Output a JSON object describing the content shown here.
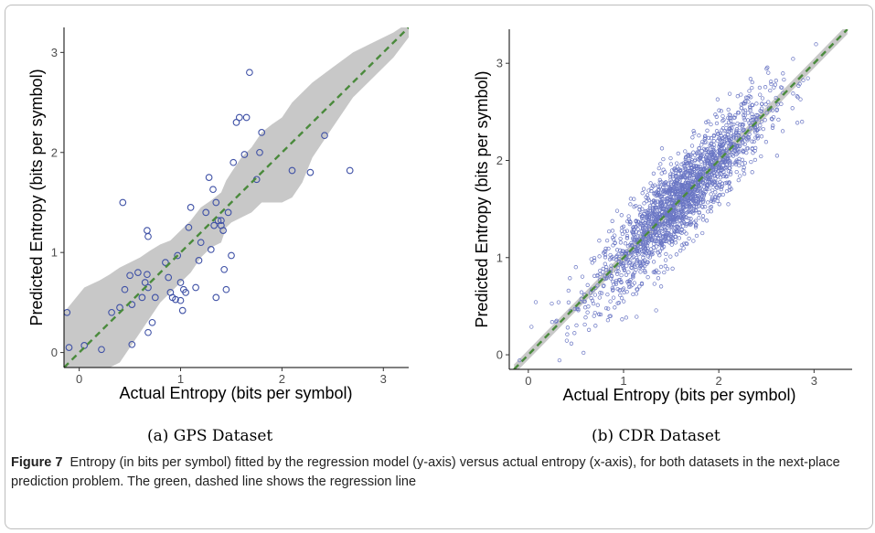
{
  "chart_data": [
    {
      "type": "scatter",
      "xlabel": "Actual Entropy (bits per symbol)",
      "ylabel": "Predicted Entropy (bits per symbol)",
      "subcaption": "(a)  GPS Dataset",
      "xlim": [
        -0.15,
        3.25
      ],
      "ylim": [
        -0.15,
        3.25
      ],
      "xticks": [
        "0",
        "1",
        "2",
        "3"
      ],
      "yticks": [
        "0",
        "1",
        "2",
        "3"
      ],
      "grid": false,
      "point_color": "#3f51a6",
      "line_color": "#4a8a3c",
      "band_color": "#c8c8c8",
      "regression_line": {
        "x": [
          -0.15,
          3.25
        ],
        "y": [
          -0.15,
          3.25
        ],
        "style": "dashed"
      },
      "confidence_band": {
        "x": [
          -0.15,
          0.05,
          0.2,
          0.3,
          0.4,
          0.5,
          0.6,
          0.7,
          0.8,
          0.9,
          1.0,
          1.1,
          1.2,
          1.3,
          1.4,
          1.45,
          1.5,
          1.6,
          1.7,
          1.8,
          1.9,
          2.0,
          2.1,
          2.2,
          2.3,
          2.5,
          2.7,
          2.9,
          3.1,
          3.25
        ],
        "upper": [
          0.4,
          0.65,
          0.72,
          0.78,
          0.85,
          0.9,
          0.95,
          1.02,
          1.08,
          1.12,
          1.22,
          1.32,
          1.45,
          1.52,
          1.6,
          1.72,
          1.8,
          1.95,
          2.05,
          2.2,
          2.28,
          2.35,
          2.5,
          2.6,
          2.7,
          2.85,
          3.0,
          3.1,
          3.2,
          3.3
        ],
        "lower": [
          -0.15,
          -0.15,
          -0.15,
          -0.15,
          -0.1,
          0.05,
          0.2,
          0.35,
          0.5,
          0.6,
          0.7,
          0.8,
          0.95,
          1.05,
          1.1,
          1.25,
          1.3,
          1.35,
          1.4,
          1.5,
          1.5,
          1.5,
          1.55,
          1.7,
          1.95,
          2.25,
          2.55,
          2.75,
          2.95,
          3.15
        ]
      },
      "points": [
        [
          -0.12,
          0.4
        ],
        [
          -0.1,
          0.05
        ],
        [
          0.05,
          0.07
        ],
        [
          0.22,
          0.03
        ],
        [
          0.32,
          0.4
        ],
        [
          0.4,
          0.45
        ],
        [
          0.45,
          0.63
        ],
        [
          0.52,
          0.48
        ],
        [
          0.5,
          0.77
        ],
        [
          0.52,
          0.08
        ],
        [
          0.58,
          0.8
        ],
        [
          0.62,
          0.55
        ],
        [
          0.65,
          0.7
        ],
        [
          0.67,
          0.78
        ],
        [
          0.68,
          0.65
        ],
        [
          0.68,
          0.2
        ],
        [
          0.72,
          0.3
        ],
        [
          0.75,
          0.55
        ],
        [
          0.43,
          1.5
        ],
        [
          0.67,
          1.22
        ],
        [
          0.68,
          1.16
        ],
        [
          0.85,
          0.9
        ],
        [
          0.88,
          0.75
        ],
        [
          0.9,
          0.6
        ],
        [
          0.92,
          0.55
        ],
        [
          0.95,
          0.53
        ],
        [
          0.97,
          0.97
        ],
        [
          1.0,
          0.7
        ],
        [
          1.0,
          0.52
        ],
        [
          1.02,
          0.42
        ],
        [
          1.03,
          0.63
        ],
        [
          1.05,
          0.6
        ],
        [
          1.08,
          1.25
        ],
        [
          1.1,
          1.45
        ],
        [
          1.15,
          0.65
        ],
        [
          1.18,
          0.92
        ],
        [
          1.2,
          1.1
        ],
        [
          1.25,
          1.4
        ],
        [
          1.28,
          1.75
        ],
        [
          1.3,
          1.03
        ],
        [
          1.32,
          1.63
        ],
        [
          1.33,
          1.27
        ],
        [
          1.35,
          0.55
        ],
        [
          1.35,
          1.5
        ],
        [
          1.37,
          1.32
        ],
        [
          1.4,
          1.32
        ],
        [
          1.4,
          1.27
        ],
        [
          1.42,
          1.22
        ],
        [
          1.43,
          0.83
        ],
        [
          1.45,
          0.63
        ],
        [
          1.47,
          1.4
        ],
        [
          1.5,
          0.97
        ],
        [
          1.52,
          1.9
        ],
        [
          1.55,
          2.3
        ],
        [
          1.58,
          2.35
        ],
        [
          1.63,
          1.98
        ],
        [
          1.65,
          2.35
        ],
        [
          1.68,
          2.8
        ],
        [
          1.75,
          1.73
        ],
        [
          1.78,
          2.0
        ],
        [
          1.8,
          2.2
        ],
        [
          2.1,
          1.82
        ],
        [
          2.28,
          1.8
        ],
        [
          2.42,
          2.17
        ],
        [
          2.67,
          1.82
        ]
      ]
    },
    {
      "type": "scatter",
      "xlabel": "Actual Entropy (bits per symbol)",
      "ylabel": "Predicted Entropy (bits per symbol)",
      "subcaption": "(b)  CDR Dataset",
      "xlim": [
        -0.2,
        3.4
      ],
      "ylim": [
        -0.15,
        3.35
      ],
      "xticks": [
        "0",
        "1",
        "2",
        "3"
      ],
      "yticks": [
        "0",
        "1",
        "2",
        "3"
      ],
      "grid": false,
      "point_color": "#6a76c4",
      "line_color": "#4a8a3c",
      "band_color": "#c8c8c8",
      "regression_line": {
        "x": [
          -0.15,
          3.35
        ],
        "y": [
          -0.15,
          3.35
        ],
        "style": "dashed"
      },
      "n_points": 1900,
      "point_spread": {
        "x_center": 1.6,
        "x_sd": 0.45,
        "y_residual_sd": 0.22
      }
    }
  ],
  "caption": {
    "label": "Figure 7",
    "text": "Entropy (in bits per symbol) fitted by the regression model (y-axis) versus actual entropy (x-axis), for both datasets in the next-place prediction problem. The green, dashed line shows the regression line"
  }
}
